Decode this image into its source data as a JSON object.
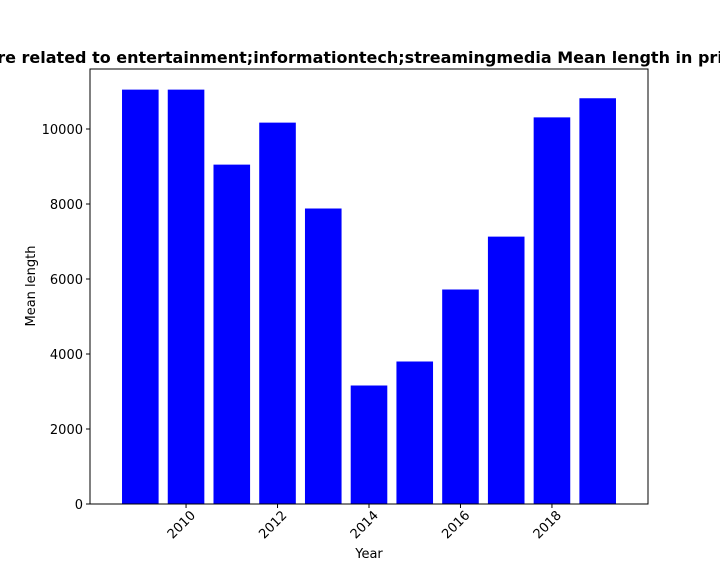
{
  "chart_data": {
    "type": "bar",
    "title": "re related to entertainment;informationtech;streamingmedia Mean length in pri",
    "xlabel": "Year",
    "ylabel": "Mean length",
    "x": [
      2009,
      2010,
      2011,
      2012,
      2013,
      2014,
      2015,
      2016,
      2017,
      2018,
      2019
    ],
    "values": [
      11050,
      11050,
      9050,
      10170,
      7880,
      3160,
      3800,
      5720,
      7130,
      10310,
      10820
    ],
    "xlim": [
      2007.9,
      2020.1
    ],
    "ylim": [
      0,
      11600
    ],
    "xticks": [
      "2010",
      "2012",
      "2014",
      "2016",
      "2018"
    ],
    "yticks": [
      "0",
      "2000",
      "4000",
      "6000",
      "8000",
      "10000"
    ],
    "bar_color": "#0000ff",
    "grid": false,
    "legend": "none"
  }
}
